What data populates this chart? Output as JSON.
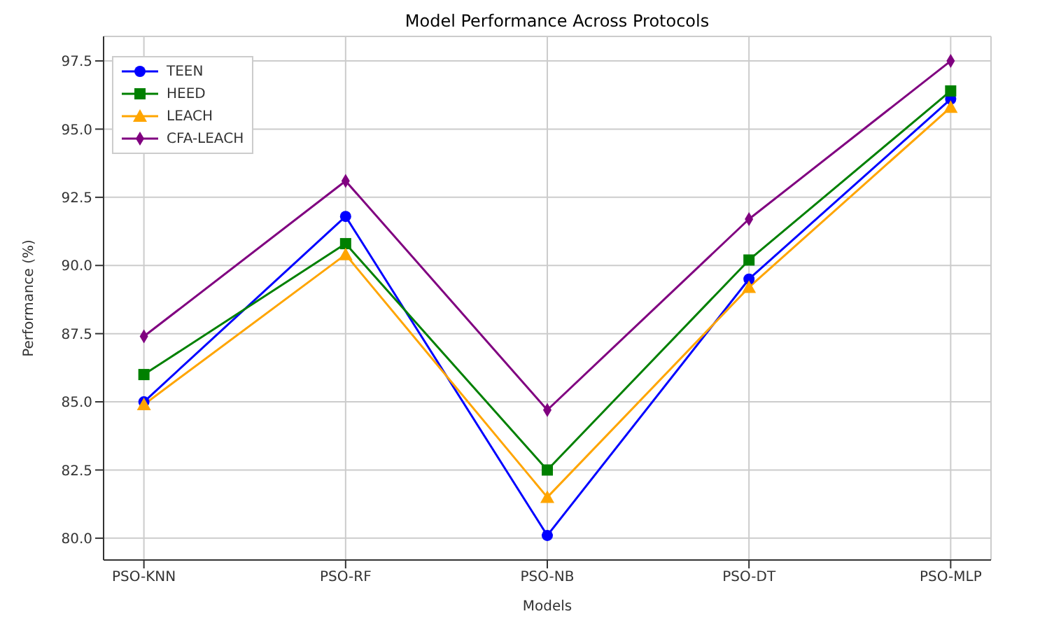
{
  "chart_data": {
    "type": "line",
    "title": "Model Performance Across Protocols",
    "xlabel": "Models",
    "ylabel": "Performance (%)",
    "categories": [
      "PSO-KNN",
      "PSO-RF",
      "PSO-NB",
      "PSO-DT",
      "PSO-MLP"
    ],
    "series": [
      {
        "name": "TEEN",
        "color": "#0000ff",
        "marker": "circle",
        "values": [
          85.0,
          91.8,
          80.1,
          89.5,
          96.1
        ]
      },
      {
        "name": "HEED",
        "color": "#008000",
        "marker": "square",
        "values": [
          86.0,
          90.8,
          82.5,
          90.2,
          96.4
        ]
      },
      {
        "name": "LEACH",
        "color": "#ffa500",
        "marker": "triangle",
        "values": [
          84.9,
          90.4,
          81.5,
          89.2,
          95.8
        ]
      },
      {
        "name": "CFA-LEACH",
        "color": "#800080",
        "marker": "diamond",
        "values": [
          87.4,
          93.1,
          84.7,
          91.7,
          97.5
        ]
      }
    ],
    "ylim": [
      79.2,
      98.4
    ],
    "yticks": [
      {
        "value": 80,
        "label": "80.0"
      },
      {
        "value": 82.5,
        "label": "82.5"
      },
      {
        "value": 85,
        "label": "85.0"
      },
      {
        "value": 87.5,
        "label": "87.5"
      },
      {
        "value": 90,
        "label": "90.0"
      },
      {
        "value": 92.5,
        "label": "92.5"
      },
      {
        "value": 95,
        "label": "95.0"
      },
      {
        "value": 97.5,
        "label": "97.5"
      }
    ],
    "grid": true,
    "legend": "top left",
    "line_style": "solid"
  }
}
